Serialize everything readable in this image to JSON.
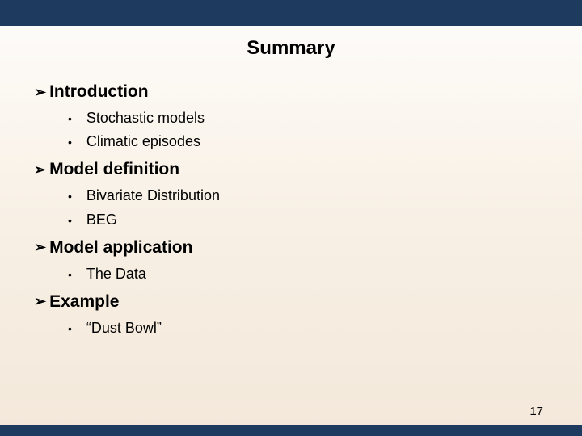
{
  "slide": {
    "title": "Summary",
    "sections": [
      {
        "heading": "Introduction",
        "items": [
          "Stochastic models",
          "Climatic episodes"
        ]
      },
      {
        "heading": "Model definition",
        "items": [
          "Bivariate Distribution",
          "BEG"
        ]
      },
      {
        "heading": "Model application",
        "items": [
          "The Data"
        ]
      },
      {
        "heading": "Example",
        "items": [
          "“Dust Bowl”"
        ]
      }
    ],
    "page_number": "17",
    "colors": {
      "bar": "#1e3a5f",
      "bg_top": "#fefdfb",
      "bg_bottom": "#f3e8da",
      "text": "#000000"
    },
    "typography": {
      "title_fontsize": 24,
      "heading_fontsize": 21,
      "item_fontsize": 18,
      "page_fontsize": 15,
      "font_family": "Arial"
    },
    "bullets": {
      "level1": "➢",
      "level2": "•"
    }
  }
}
